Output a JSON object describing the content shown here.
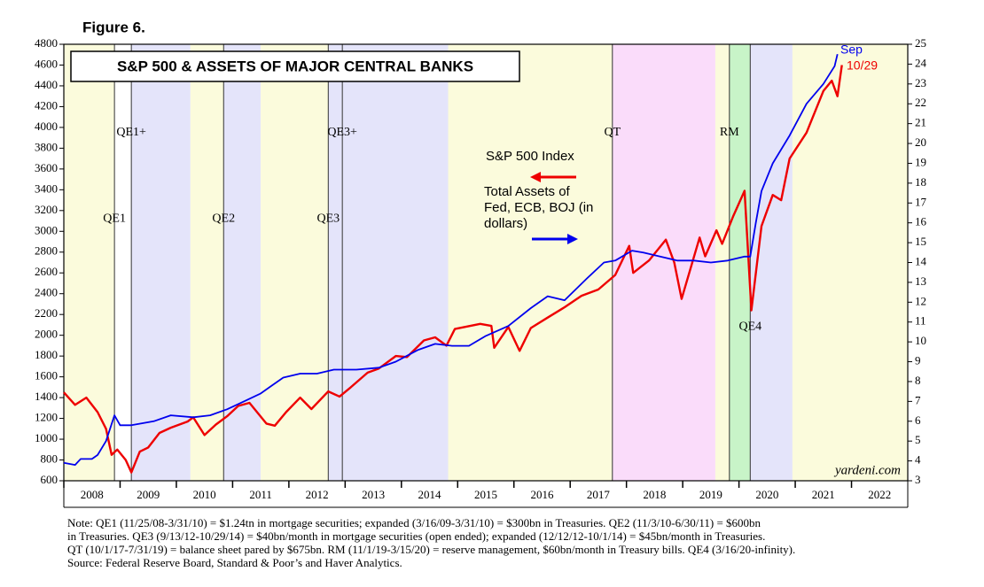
{
  "chart_data": {
    "type": "line",
    "header": "Figure 6.",
    "title": "S&P 500 & ASSETS OF MAJOR CENTRAL BANKS",
    "watermark": "yardeni.com",
    "xlim": [
      2008,
      2023
    ],
    "xticks": [
      2008,
      2009,
      2010,
      2011,
      2012,
      2013,
      2014,
      2015,
      2016,
      2017,
      2018,
      2019,
      2020,
      2021,
      2022
    ],
    "ylim": [
      600,
      4800
    ],
    "yticks": [
      600,
      800,
      1000,
      1200,
      1400,
      1600,
      1800,
      2000,
      2200,
      2400,
      2600,
      2800,
      3000,
      3200,
      3400,
      3600,
      3800,
      4000,
      4200,
      4400,
      4600,
      4800
    ],
    "y2lim": [
      3,
      25
    ],
    "y2ticks": [
      3,
      4,
      5,
      6,
      7,
      8,
      9,
      10,
      11,
      12,
      13,
      14,
      15,
      16,
      17,
      18,
      19,
      20,
      21,
      22,
      23,
      24,
      25
    ],
    "periods": [
      {
        "start": 2008,
        "end": 2008.9,
        "color": "#fbfbdc"
      },
      {
        "start": 2009.2,
        "end": 2010.25,
        "color": "#e4e4fa"
      },
      {
        "start": 2010.25,
        "end": 2010.84,
        "color": "#fbfbdc"
      },
      {
        "start": 2010.84,
        "end": 2011.5,
        "color": "#e4e4fa"
      },
      {
        "start": 2011.5,
        "end": 2012.7,
        "color": "#fbfbdc"
      },
      {
        "start": 2012.7,
        "end": 2014.83,
        "color": "#e4e4fa"
      },
      {
        "start": 2014.83,
        "end": 2017.75,
        "color": "#fbfbdc"
      },
      {
        "start": 2017.75,
        "end": 2019.58,
        "color": "#fadcfa"
      },
      {
        "start": 2019.58,
        "end": 2019.83,
        "color": "#fbfbdc"
      },
      {
        "start": 2019.83,
        "end": 2020.2,
        "color": "#c8f4c8"
      },
      {
        "start": 2020.2,
        "end": 2020.95,
        "color": "#e4e4fa"
      },
      {
        "start": 2020.95,
        "end": 2023,
        "color": "#fbfbdc"
      }
    ],
    "markers": [
      2008.9,
      2009.2,
      2010.84,
      2012.7,
      2012.95,
      2017.75,
      2019.83,
      2020.2
    ],
    "annotations": [
      {
        "text": "QE1",
        "x": 2008.9,
        "y": 3120
      },
      {
        "text": "QE1+",
        "x": 2009.2,
        "y": 3950
      },
      {
        "text": "QE2",
        "x": 2010.84,
        "y": 3120
      },
      {
        "text": "QE3",
        "x": 2012.7,
        "y": 3120
      },
      {
        "text": "QE3+",
        "x": 2012.95,
        "y": 3950
      },
      {
        "text": "QT",
        "x": 2017.75,
        "y": 3950
      },
      {
        "text": "RM",
        "x": 2019.83,
        "y": 3950
      },
      {
        "text": "QE4",
        "x": 2020.2,
        "y": 2080
      }
    ],
    "series": [
      {
        "name": "S&P 500 Index",
        "color": "#ee0000",
        "end_label": "10/29",
        "x": [
          2008.0,
          2008.2,
          2008.4,
          2008.6,
          2008.75,
          2008.85,
          2008.95,
          2009.1,
          2009.2,
          2009.35,
          2009.5,
          2009.7,
          2009.9,
          2010.2,
          2010.3,
          2010.5,
          2010.7,
          2010.9,
          2011.1,
          2011.3,
          2011.6,
          2011.75,
          2011.95,
          2012.2,
          2012.4,
          2012.7,
          2012.9,
          2013.1,
          2013.4,
          2013.6,
          2013.9,
          2014.1,
          2014.4,
          2014.6,
          2014.8,
          2014.95,
          2015.4,
          2015.6,
          2015.65,
          2015.9,
          2016.1,
          2016.3,
          2016.6,
          2016.9,
          2017.2,
          2017.5,
          2017.8,
          2018.05,
          2018.12,
          2018.4,
          2018.7,
          2018.85,
          2018.98,
          2019.3,
          2019.4,
          2019.6,
          2019.7,
          2019.9,
          2020.1,
          2020.22,
          2020.4,
          2020.6,
          2020.75,
          2020.9,
          2021.2,
          2021.5,
          2021.65,
          2021.75,
          2021.83
        ],
        "values": [
          1450,
          1330,
          1400,
          1260,
          1100,
          850,
          900,
          800,
          680,
          880,
          920,
          1060,
          1110,
          1170,
          1210,
          1040,
          1140,
          1220,
          1320,
          1350,
          1150,
          1130,
          1260,
          1400,
          1290,
          1460,
          1410,
          1500,
          1640,
          1680,
          1800,
          1790,
          1950,
          1980,
          1900,
          2060,
          2110,
          2090,
          1880,
          2080,
          1850,
          2070,
          2170,
          2270,
          2380,
          2440,
          2580,
          2860,
          2600,
          2720,
          2920,
          2700,
          2350,
          2940,
          2760,
          3010,
          2880,
          3150,
          3390,
          2240,
          3050,
          3350,
          3300,
          3700,
          3950,
          4350,
          4450,
          4300,
          4600
        ]
      },
      {
        "name": "Total Assets of Fed, ECB, BOJ (in dollars)",
        "color": "#0000ee",
        "axis": "y2",
        "end_label": "Sep",
        "x": [
          2008.0,
          2008.2,
          2008.3,
          2008.5,
          2008.6,
          2008.75,
          2008.9,
          2009.0,
          2009.2,
          2009.4,
          2009.6,
          2009.9,
          2010.3,
          2010.6,
          2010.9,
          2011.2,
          2011.5,
          2011.7,
          2011.9,
          2012.2,
          2012.5,
          2012.8,
          2013.2,
          2013.6,
          2013.9,
          2014.3,
          2014.6,
          2014.9,
          2015.2,
          2015.5,
          2015.9,
          2016.3,
          2016.6,
          2016.9,
          2017.3,
          2017.6,
          2017.8,
          2018.1,
          2018.3,
          2018.6,
          2018.9,
          2019.2,
          2019.5,
          2019.8,
          2020.1,
          2020.2,
          2020.3,
          2020.4,
          2020.6,
          2020.9,
          2021.2,
          2021.5,
          2021.7,
          2021.75
        ],
        "values": [
          3.9,
          3.8,
          4.1,
          4.1,
          4.3,
          5.0,
          6.3,
          5.8,
          5.8,
          5.9,
          6.0,
          6.3,
          6.2,
          6.3,
          6.6,
          7.0,
          7.4,
          7.8,
          8.2,
          8.4,
          8.4,
          8.6,
          8.6,
          8.7,
          9.0,
          9.6,
          9.9,
          9.8,
          9.8,
          10.3,
          10.8,
          11.7,
          12.3,
          12.1,
          13.2,
          14.0,
          14.1,
          14.6,
          14.5,
          14.3,
          14.1,
          14.1,
          14.0,
          14.1,
          14.3,
          14.3,
          16.0,
          17.6,
          19.0,
          20.4,
          22.0,
          23.0,
          23.9,
          24.5
        ]
      }
    ],
    "notes": [
      "Note: QE1 (11/25/08-3/31/10) = $1.24tn in mortgage securities; expanded (3/16/09-3/31/10) = $300bn in Treasuries. QE2 (11/3/10-6/30/11) = $600bn",
      "in Treasuries. QE3 (9/13/12-10/29/14) = $40bn/month in mortgage securities (open ended); expanded (12/12/12-10/1/14) = $45bn/month in Treasuries.",
      "QT (10/1/17-7/31/19) = balance sheet pared by $675bn. RM (11/1/19-3/15/20) = reserve management, $60bn/month in Treasury bills. QE4 (3/16/20-infinity).",
      "Source: Federal Reserve Board, Standard & Poor’s and Haver Analytics."
    ]
  }
}
